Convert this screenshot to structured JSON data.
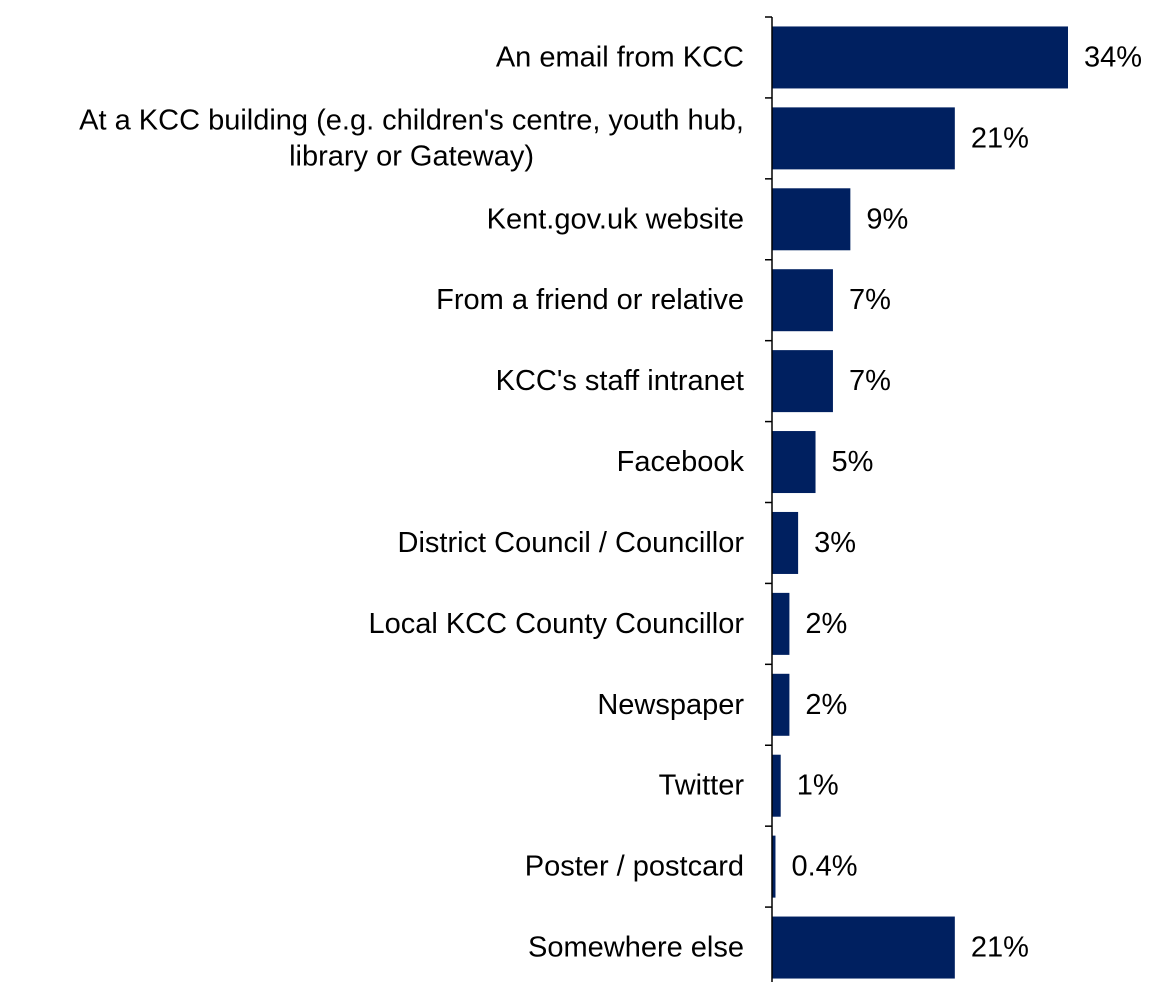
{
  "chart_data": {
    "type": "bar",
    "orientation": "horizontal",
    "categories": [
      "An email from KCC",
      "At a KCC building (e.g. children's centre, youth hub, library or Gateway)",
      "Kent.gov.uk website",
      "From a friend or relative",
      "KCC's staff intranet",
      "Facebook",
      "District Council / Councillor",
      "Local KCC County Councillor",
      "Newspaper",
      "Twitter",
      "Poster / postcard",
      "Somewhere else"
    ],
    "category_label_lines": [
      [
        "An email from KCC"
      ],
      [
        "At a KCC building (e.g. children's centre, youth hub,",
        "library or Gateway)"
      ],
      [
        "Kent.gov.uk website"
      ],
      [
        "From a friend or relative"
      ],
      [
        "KCC's staff intranet"
      ],
      [
        "Facebook"
      ],
      [
        "District Council / Councillor"
      ],
      [
        "Local KCC County Councillor"
      ],
      [
        "Newspaper"
      ],
      [
        "Twitter"
      ],
      [
        "Poster / postcard"
      ],
      [
        "Somewhere else"
      ]
    ],
    "values": [
      34,
      21,
      9,
      7,
      7,
      5,
      3,
      2,
      2,
      1,
      0.4,
      21
    ],
    "value_labels": [
      "34%",
      "21%",
      "9%",
      "7%",
      "7%",
      "5%",
      "3%",
      "2%",
      "2%",
      "1%",
      "0.4%",
      "21%"
    ],
    "unit": "%",
    "xlim": [
      0,
      40
    ],
    "grid": false,
    "legend": "none",
    "bar_color": "#002060",
    "axis_color": "#000000"
  }
}
